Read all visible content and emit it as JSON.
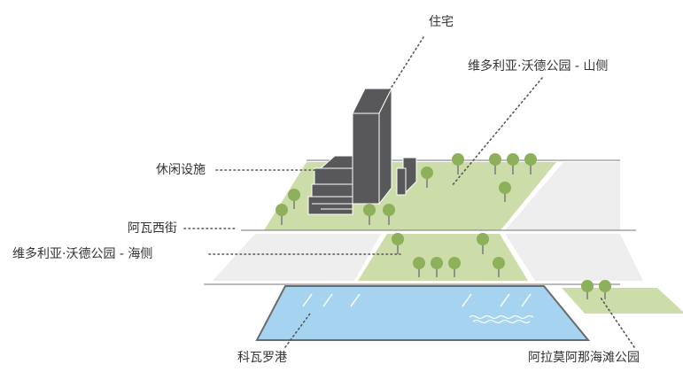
{
  "labels": {
    "residential": "住宅",
    "park_mountain_side": "维多利亚·沃德公园 - 山侧",
    "leisure": "休闲设施",
    "street": "阿瓦西街",
    "park_sea_side": "维多利亚·沃德公园 - 海侧",
    "harbor": "科瓦罗港",
    "beach_park": "阿拉莫阿那海滩公园"
  },
  "colors": {
    "building": "#58585a",
    "building_line": "#ffffff",
    "park": "#cddda9",
    "tree_canopy": "#8db05a",
    "tree_trunk": "#7a7a7a",
    "plaza": "#eeeeee",
    "water": "#a6d3ef",
    "water_edge": "#6b6b6b",
    "edge_line": "#777777",
    "leader": "#555555",
    "text": "#333333"
  }
}
